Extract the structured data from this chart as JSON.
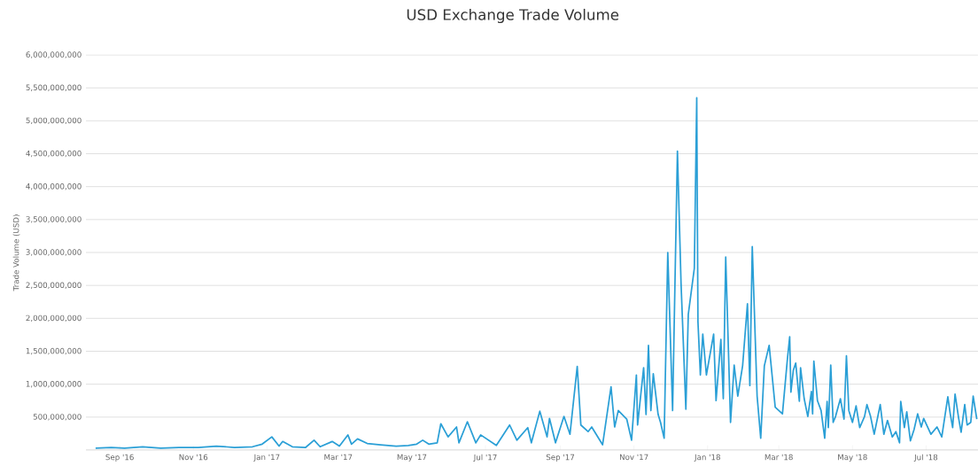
{
  "chart_data": {
    "type": "line",
    "title": "USD Exchange Trade Volume",
    "ylabel": "Trade Volume (USD)",
    "xlim": [
      "2016-08-04",
      "2018-08-13"
    ],
    "ylim": [
      0,
      6000000000
    ],
    "grid": "y",
    "marker": "none",
    "line_style": "solid",
    "xticks": [
      {
        "value": "2016-09-01",
        "label": "Sep '16"
      },
      {
        "value": "2016-11-01",
        "label": "Nov '16"
      },
      {
        "value": "2017-01-01",
        "label": "Jan '17"
      },
      {
        "value": "2017-03-01",
        "label": "Mar '17"
      },
      {
        "value": "2017-05-01",
        "label": "May '17"
      },
      {
        "value": "2017-07-01",
        "label": "Jul '17"
      },
      {
        "value": "2017-09-01",
        "label": "Sep '17"
      },
      {
        "value": "2017-11-01",
        "label": "Nov '17"
      },
      {
        "value": "2018-01-01",
        "label": "Jan '18"
      },
      {
        "value": "2018-03-01",
        "label": "Mar '18"
      },
      {
        "value": "2018-05-01",
        "label": "May '18"
      },
      {
        "value": "2018-07-01",
        "label": "Jul '18"
      }
    ],
    "yticks": [
      {
        "value": 0,
        "label": null
      },
      {
        "value": 500000000,
        "label": "500,000,000"
      },
      {
        "value": 1000000000,
        "label": "1,000,000,000"
      },
      {
        "value": 1500000000,
        "label": "1,500,000,000"
      },
      {
        "value": 2000000000,
        "label": "2,000,000,000"
      },
      {
        "value": 2500000000,
        "label": "2,500,000,000"
      },
      {
        "value": 3000000000,
        "label": "3,000,000,000"
      },
      {
        "value": 3500000000,
        "label": "3,500,000,000"
      },
      {
        "value": 4000000000,
        "label": "4,000,000,000"
      },
      {
        "value": 4500000000,
        "label": "4,500,000,000"
      },
      {
        "value": 5000000000,
        "label": "5,000,000,000"
      },
      {
        "value": 5500000000,
        "label": "5,500,000,000"
      },
      {
        "value": 6000000000,
        "label": "6,000,000,000"
      }
    ],
    "series": [
      {
        "color": "#2a9fd6",
        "x": [
          "2016-08-12",
          "2016-08-25",
          "2016-09-05",
          "2016-09-20",
          "2016-10-05",
          "2016-10-20",
          "2016-11-05",
          "2016-11-20",
          "2016-12-05",
          "2016-12-20",
          "2016-12-28",
          "2017-01-05",
          "2017-01-11",
          "2017-01-14",
          "2017-01-22",
          "2017-02-02",
          "2017-02-09",
          "2017-02-14",
          "2017-02-24",
          "2017-03-02",
          "2017-03-09",
          "2017-03-12",
          "2017-03-17",
          "2017-03-25",
          "2017-04-05",
          "2017-04-18",
          "2017-04-28",
          "2017-05-05",
          "2017-05-10",
          "2017-05-15",
          "2017-05-22",
          "2017-05-25",
          "2017-05-31",
          "2017-06-07",
          "2017-06-09",
          "2017-06-16",
          "2017-06-23",
          "2017-06-27",
          "2017-07-10",
          "2017-07-21",
          "2017-07-27",
          "2017-08-05",
          "2017-08-08",
          "2017-08-15",
          "2017-08-21",
          "2017-08-23",
          "2017-08-28",
          "2017-09-04",
          "2017-09-09",
          "2017-09-15",
          "2017-09-18",
          "2017-09-24",
          "2017-09-27",
          "2017-10-06",
          "2017-10-13",
          "2017-10-16",
          "2017-10-19",
          "2017-10-26",
          "2017-10-30",
          "2017-11-03",
          "2017-11-04",
          "2017-11-09",
          "2017-11-11",
          "2017-11-13",
          "2017-11-15",
          "2017-11-17",
          "2017-11-21",
          "2017-11-23",
          "2017-11-26",
          "2017-11-29",
          "2017-12-03",
          "2017-12-07",
          "2017-12-10",
          "2017-12-14",
          "2017-12-16",
          "2017-12-21",
          "2017-12-23",
          "2017-12-24",
          "2017-12-26",
          "2017-12-28",
          "2017-12-31",
          "2018-01-06",
          "2018-01-08",
          "2018-01-12",
          "2018-01-14",
          "2018-01-16",
          "2018-01-20",
          "2018-01-23",
          "2018-01-26",
          "2018-01-30",
          "2018-02-03",
          "2018-02-05",
          "2018-02-07",
          "2018-02-11",
          "2018-02-14",
          "2018-02-17",
          "2018-02-21",
          "2018-02-26",
          "2018-03-04",
          "2018-03-08",
          "2018-03-10",
          "2018-03-11",
          "2018-03-13",
          "2018-03-15",
          "2018-03-18",
          "2018-03-19",
          "2018-03-22",
          "2018-03-25",
          "2018-03-28",
          "2018-03-29",
          "2018-03-30",
          "2018-04-02",
          "2018-04-05",
          "2018-04-08",
          "2018-04-10",
          "2018-04-11",
          "2018-04-13",
          "2018-04-15",
          "2018-04-17",
          "2018-04-21",
          "2018-04-24",
          "2018-04-26",
          "2018-04-28",
          "2018-05-01",
          "2018-05-04",
          "2018-05-07",
          "2018-05-11",
          "2018-05-13",
          "2018-05-16",
          "2018-05-19",
          "2018-05-24",
          "2018-05-27",
          "2018-05-30",
          "2018-06-03",
          "2018-06-06",
          "2018-06-09",
          "2018-06-10",
          "2018-06-13",
          "2018-06-15",
          "2018-06-18",
          "2018-06-21",
          "2018-06-24",
          "2018-06-27",
          "2018-06-29",
          "2018-07-05",
          "2018-07-10",
          "2018-07-14",
          "2018-07-19",
          "2018-07-21",
          "2018-07-23",
          "2018-07-25",
          "2018-07-28",
          "2018-07-30",
          "2018-08-02",
          "2018-08-04",
          "2018-08-07",
          "2018-08-09",
          "2018-08-12"
        ],
        "values": [
          30000000,
          40000000,
          30000000,
          50000000,
          30000000,
          40000000,
          40000000,
          60000000,
          40000000,
          50000000,
          90000000,
          200000000,
          60000000,
          130000000,
          50000000,
          40000000,
          150000000,
          50000000,
          130000000,
          60000000,
          230000000,
          90000000,
          170000000,
          100000000,
          80000000,
          60000000,
          70000000,
          90000000,
          150000000,
          90000000,
          110000000,
          400000000,
          200000000,
          350000000,
          110000000,
          430000000,
          110000000,
          230000000,
          70000000,
          380000000,
          150000000,
          340000000,
          110000000,
          590000000,
          200000000,
          480000000,
          110000000,
          510000000,
          240000000,
          1270000000,
          380000000,
          280000000,
          350000000,
          80000000,
          960000000,
          350000000,
          600000000,
          470000000,
          150000000,
          1140000000,
          380000000,
          1250000000,
          540000000,
          1590000000,
          600000000,
          1160000000,
          540000000,
          420000000,
          180000000,
          3000000000,
          600000000,
          4540000000,
          2530000000,
          620000000,
          2060000000,
          2760000000,
          5350000000,
          1950000000,
          1140000000,
          1760000000,
          1140000000,
          1760000000,
          750000000,
          1680000000,
          780000000,
          2930000000,
          420000000,
          1290000000,
          820000000,
          1280000000,
          2220000000,
          980000000,
          3090000000,
          820000000,
          180000000,
          1280000000,
          1590000000,
          650000000,
          550000000,
          1360000000,
          1720000000,
          880000000,
          1210000000,
          1320000000,
          740000000,
          1250000000,
          780000000,
          510000000,
          890000000,
          550000000,
          1350000000,
          750000000,
          600000000,
          180000000,
          740000000,
          340000000,
          1290000000,
          420000000,
          510000000,
          780000000,
          470000000,
          1430000000,
          600000000,
          420000000,
          670000000,
          340000000,
          510000000,
          690000000,
          510000000,
          240000000,
          690000000,
          240000000,
          450000000,
          200000000,
          280000000,
          110000000,
          740000000,
          340000000,
          580000000,
          140000000,
          310000000,
          550000000,
          350000000,
          480000000,
          240000000,
          350000000,
          200000000,
          810000000,
          550000000,
          340000000,
          850000000,
          480000000,
          270000000,
          690000000,
          380000000,
          420000000,
          820000000,
          470000000
        ]
      }
    ]
  }
}
